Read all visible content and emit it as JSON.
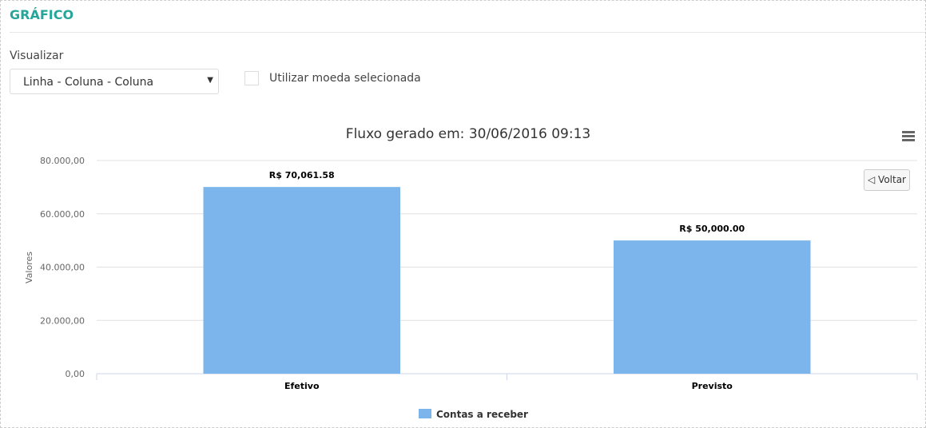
{
  "header": {
    "title": "GRÁFICO"
  },
  "controls": {
    "visualize_label": "Visualizar",
    "visualize_value": "Linha - Coluna - Coluna",
    "currency_checkbox_label": "Utilizar moeda selecionada",
    "currency_checked": false
  },
  "chart_menu": {
    "icon": "hamburger-icon"
  },
  "back_button": {
    "label": "◁ Voltar"
  },
  "chart_data": {
    "type": "bar",
    "title": "Fluxo gerado em: 30/06/2016 09:13",
    "ylabel": "Valores",
    "xlabel": "",
    "categories": [
      "Efetivo",
      "Previsto"
    ],
    "series": [
      {
        "name": "Contas a receber",
        "values": [
          70061.58,
          50000.0
        ],
        "data_labels": [
          "R$ 70,061.58",
          "R$ 50,000.00"
        ],
        "color": "#7cb5ec"
      }
    ],
    "ylim": [
      0,
      80000
    ],
    "yticks": [
      "0,00",
      "20.000,00",
      "40.000,00",
      "60.000,00",
      "80.000,00"
    ],
    "grid": true,
    "legend": "bottom"
  }
}
